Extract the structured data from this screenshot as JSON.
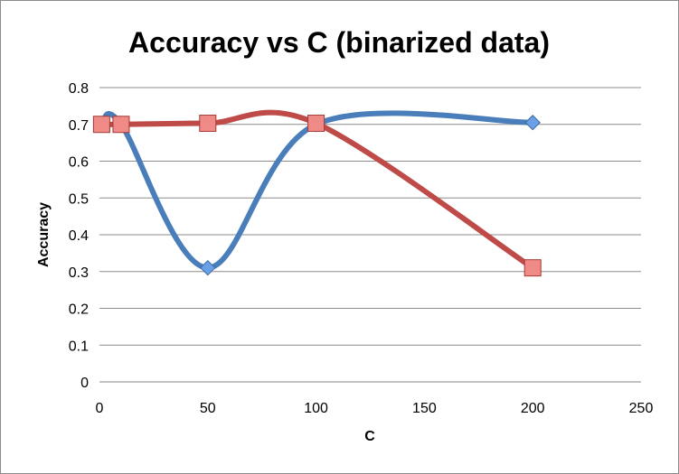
{
  "chart_data": {
    "type": "line",
    "title": "Accuracy vs C (binarized data)",
    "xlabel": "C",
    "ylabel": "Accuracy",
    "xlim": [
      0,
      250
    ],
    "ylim": [
      0,
      0.8
    ],
    "x_ticks": [
      "0",
      "50",
      "100",
      "150",
      "200",
      "250"
    ],
    "y_ticks": [
      "0",
      "0.1",
      "0.2",
      "0.3",
      "0.4",
      "0.5",
      "0.6",
      "0.7",
      "0.8"
    ],
    "grid": "horizontal",
    "legend": "none",
    "smooth": true,
    "series": [
      {
        "color": "#4a7ebb",
        "marker": "diamond",
        "x": [
          1,
          10,
          50,
          100,
          200
        ],
        "y": [
          0.7,
          0.7,
          0.31,
          0.7,
          0.705
        ]
      },
      {
        "color": "#be4b48",
        "marker": "square",
        "x": [
          1,
          10,
          50,
          100,
          200
        ],
        "y": [
          0.7,
          0.7,
          0.703,
          0.703,
          0.31
        ]
      }
    ]
  }
}
